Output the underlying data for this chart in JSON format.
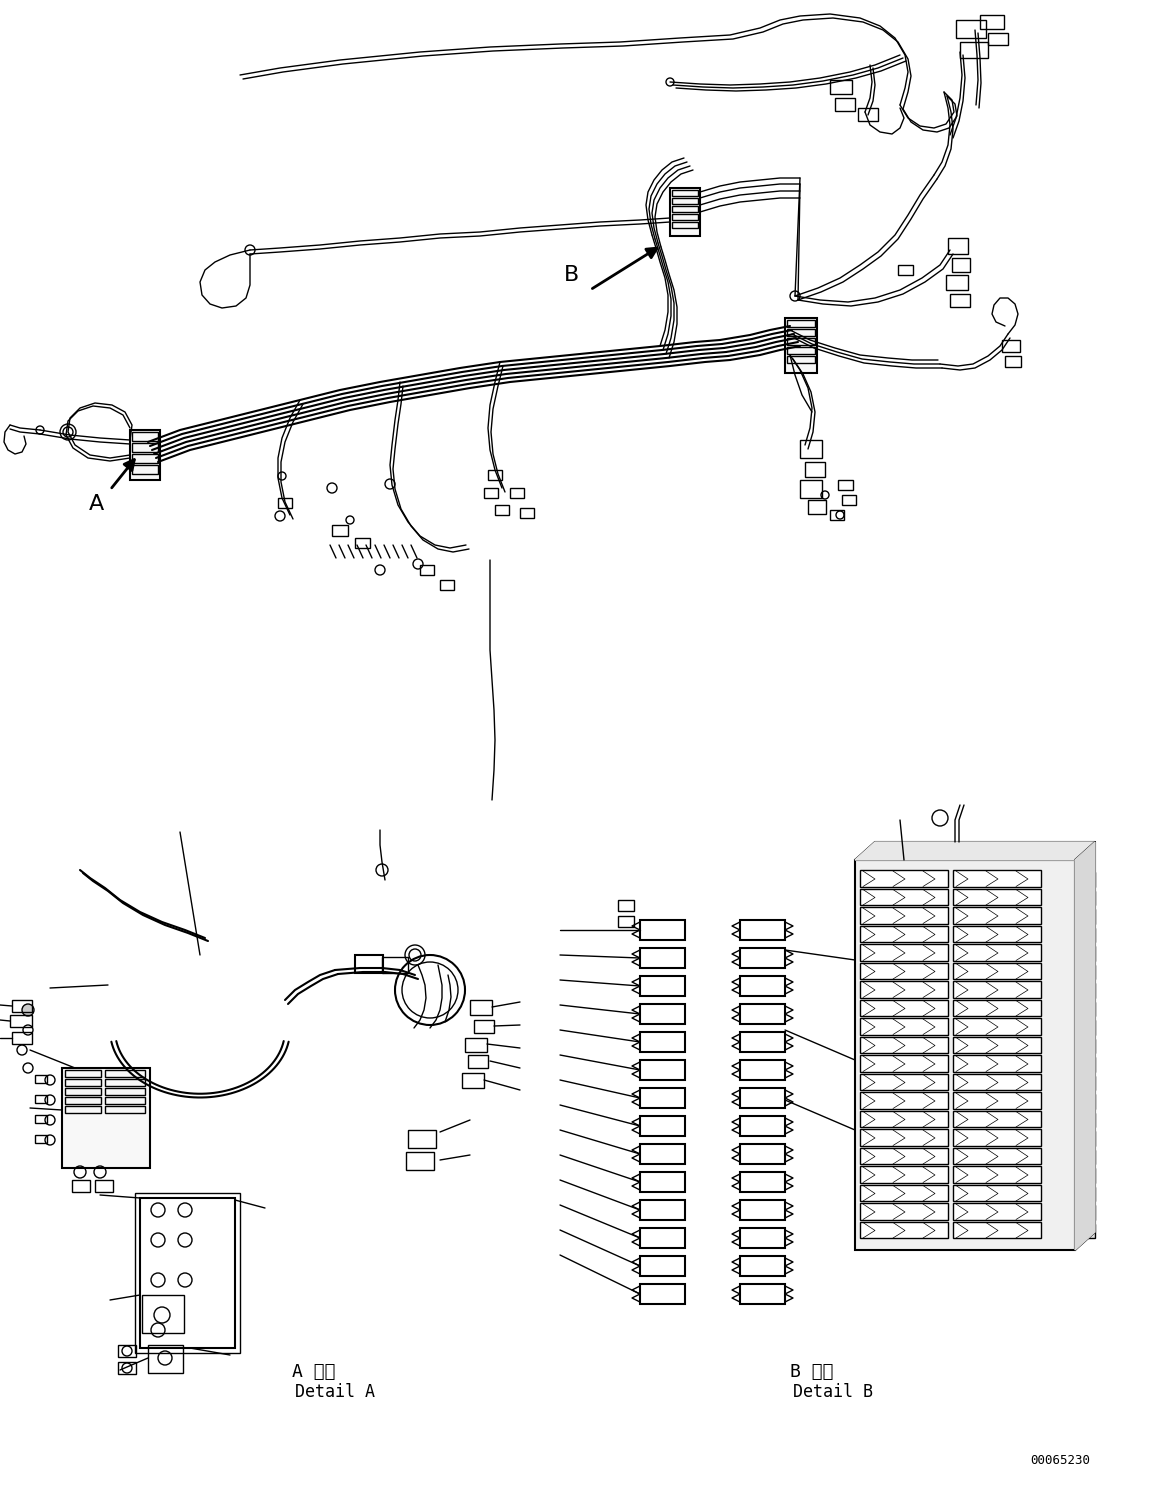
{
  "background_color": "#ffffff",
  "line_color": "#000000",
  "label_A": "A",
  "label_B": "B",
  "detail_A_japanese": "A 詳細",
  "detail_A_english": "Detail A",
  "detail_B_japanese": "B 詳細",
  "detail_B_english": "Detail B",
  "doc_number": "00065230",
  "figsize": [
    11.63,
    14.88
  ],
  "dpi": 100
}
